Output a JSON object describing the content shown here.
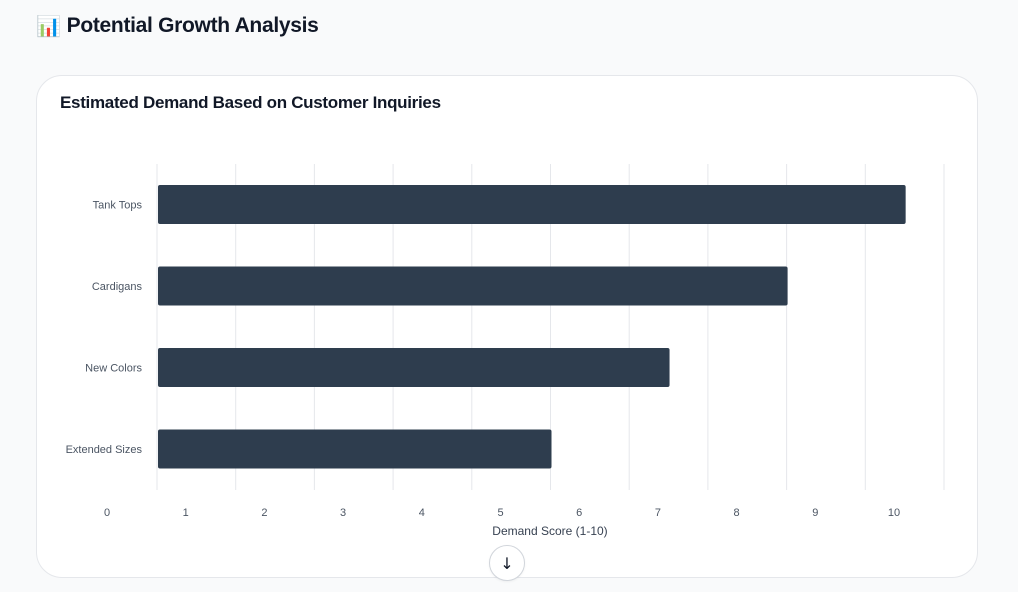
{
  "header": {
    "emoji": "📊",
    "title": "Potential Growth Analysis"
  },
  "card": {
    "title": "Estimated Demand Based on Customer Inquiries"
  },
  "chart_data": {
    "type": "bar",
    "orientation": "horizontal",
    "categories": [
      "Tank Tops",
      "Cardigans",
      "New Colors",
      "Extended Sizes"
    ],
    "values": [
      9.5,
      8,
      6.5,
      5
    ],
    "xlabel": "Demand Score (1-10)",
    "ylabel": "",
    "xticks": [
      "0",
      "1",
      "2",
      "3",
      "4",
      "5",
      "6",
      "7",
      "8",
      "9",
      "10"
    ],
    "grid": true,
    "bar_color": "#2e3d4e"
  },
  "scroll_button": {
    "icon": "arrow-down-icon",
    "glyph": "↓"
  }
}
